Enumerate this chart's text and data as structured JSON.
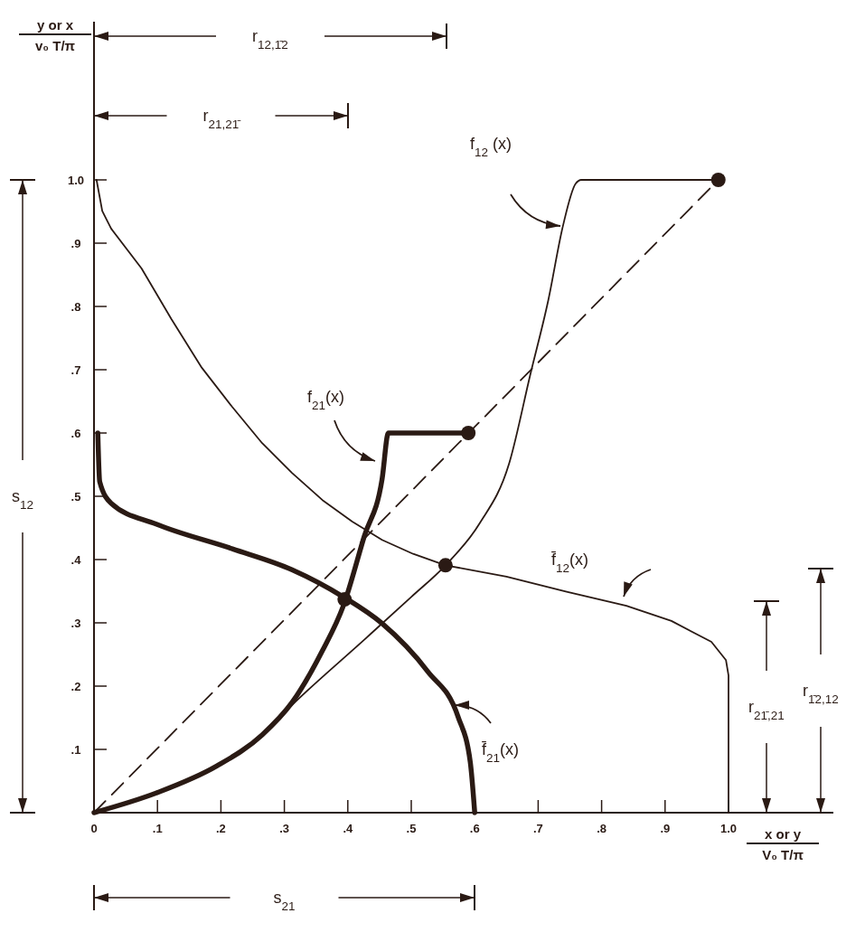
{
  "chart_data": {
    "type": "line",
    "xlabel": "x or y\nV₀ T/π",
    "ylabel": "y or x\nv₀ T/π",
    "xlim": [
      0,
      1.15
    ],
    "ylim": [
      0,
      1.25
    ],
    "xticks": [
      0,
      {
        "value": 0.1,
        "label": ".1"
      },
      {
        "value": 0.2,
        "label": ".2"
      },
      {
        "value": 0.3,
        "label": ".3"
      },
      {
        "value": 0.4,
        "label": ".4"
      },
      {
        "value": 0.5,
        "label": ".5"
      },
      {
        "value": 0.6,
        "label": ".6"
      },
      {
        "value": 0.7,
        "label": ".7"
      },
      {
        "value": 0.8,
        "label": ".8"
      },
      {
        "value": 0.9,
        "label": ".9"
      },
      {
        "value": 1.0,
        "label": "1.0"
      }
    ],
    "yticks": [
      {
        "value": 0.1,
        "label": ".1"
      },
      {
        "value": 0.2,
        "label": ".2"
      },
      {
        "value": 0.3,
        "label": ".3"
      },
      {
        "value": 0.4,
        "label": ".4"
      },
      {
        "value": 0.5,
        "label": ".5"
      },
      {
        "value": 0.6,
        "label": ".6"
      },
      {
        "value": 0.7,
        "label": ".7"
      },
      {
        "value": 0.8,
        "label": ".8"
      },
      {
        "value": 0.9,
        "label": ".9"
      },
      {
        "value": 1.0,
        "label": "1.0"
      }
    ],
    "grid": false,
    "series": [
      {
        "color": "#2a1a14",
        "x": [
          0.004,
          0.013,
          0.027,
          0.075,
          0.122,
          0.17,
          0.218,
          0.265,
          0.312,
          0.36,
          0.407,
          0.454,
          0.503,
          0.554,
          0.65,
          0.745,
          0.839,
          0.91,
          0.973,
          0.996,
          1.0,
          1.0
        ],
        "values": [
          1.0,
          0.951,
          0.923,
          0.86,
          0.78,
          0.703,
          0.641,
          0.584,
          0.537,
          0.494,
          0.46,
          0.431,
          0.409,
          0.391,
          0.373,
          0.349,
          0.327,
          0.303,
          0.27,
          0.241,
          0.217,
          0
        ]
      },
      {
        "color": "#2a1a14",
        "x": [
          0,
          0.098,
          0.194,
          0.265,
          0.312,
          0.43,
          0.5,
          0.554,
          0.607,
          0.654,
          0.688,
          0.716,
          0.739,
          0.759,
          0.768,
          0.984
        ],
        "values": [
          0,
          0.031,
          0.074,
          0.123,
          0.17,
          0.277,
          0.341,
          0.391,
          0.456,
          0.551,
          0.694,
          0.81,
          0.927,
          0.994,
          1.0,
          1.0
        ]
      },
      {
        "color": "#2a1a14",
        "x": [
          0.006,
          0.009,
          0.027,
          0.098,
          0.218,
          0.312,
          0.393,
          0.454,
          0.526,
          0.574,
          0.593,
          0.6
        ],
        "values": [
          0.6,
          0.523,
          0.489,
          0.456,
          0.417,
          0.384,
          0.341,
          0.299,
          0.223,
          0.151,
          0.08,
          0
        ]
      },
      {
        "color": "#2a1a14",
        "x": [
          0,
          0.098,
          0.194,
          0.265,
          0.312,
          0.36,
          0.393,
          0.426,
          0.454,
          0.464,
          0.59
        ],
        "values": [
          0,
          0.031,
          0.074,
          0.123,
          0.174,
          0.256,
          0.327,
          0.437,
          0.527,
          0.6,
          0.6
        ]
      },
      {
        "color": "#2a1a14",
        "line_style": "dashed",
        "x": [
          0,
          0.984
        ],
        "values": [
          0,
          1.0
        ]
      },
      {
        "type": "scatter",
        "marker": "circle",
        "color": "#2a1a14",
        "x": [
          0.395,
          0.554,
          0.59,
          0.984
        ],
        "values": [
          0.337,
          0.391,
          0.6,
          1.0
        ]
      }
    ],
    "annotations": [
      "f$_{12}$ (x)",
      "f$_{21}$(x)",
      "f̄$_{12}$(x)",
      "f̄$_{21}$(x)",
      "r$_{12,1̄2}$",
      "r$_{21,21̄}$",
      "s$_{12}$",
      "s$_{21}$",
      "r$_{21̄,21}$",
      "r$_{1̄2,12}$"
    ]
  }
}
